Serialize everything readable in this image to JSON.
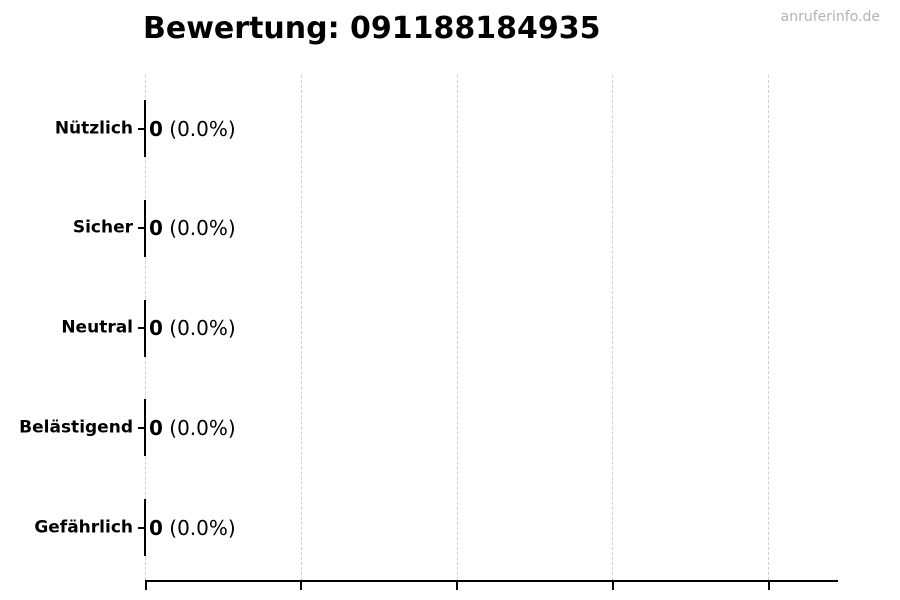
{
  "page": {
    "title": "Bewertung: 091188184935",
    "watermark": "anruferinfo.de"
  },
  "chart_data": {
    "type": "bar",
    "orientation": "horizontal",
    "title": "Bewertung: 091188184935",
    "categories": [
      "Nützlich",
      "Sicher",
      "Neutral",
      "Belästigend",
      "Gefährlich"
    ],
    "values": [
      0,
      0,
      0,
      0,
      0
    ],
    "percentages": [
      0.0,
      0.0,
      0.0,
      0.0,
      0.0
    ],
    "rows": [
      {
        "label": "Nützlich",
        "count": "0",
        "percent": "(0.0%)"
      },
      {
        "label": "Sicher",
        "count": "0",
        "percent": "(0.0%)"
      },
      {
        "label": "Neutral",
        "count": "0",
        "percent": "(0.0%)"
      },
      {
        "label": "Belästigend",
        "count": "0",
        "percent": "(0.0%)"
      },
      {
        "label": "Gefährlich",
        "count": "0",
        "percent": "(0.0%)"
      }
    ],
    "xlabel": "",
    "ylabel": "",
    "x_tick_labels": [],
    "x_tick_count": 5,
    "grid": "vertical-dashed",
    "legend": "none",
    "bar_edge_color": "#000000",
    "grid_color": "#cfcfcf",
    "axis_color": "#000000",
    "background": "#ffffff",
    "watermark_color": "#b3b3b3"
  }
}
